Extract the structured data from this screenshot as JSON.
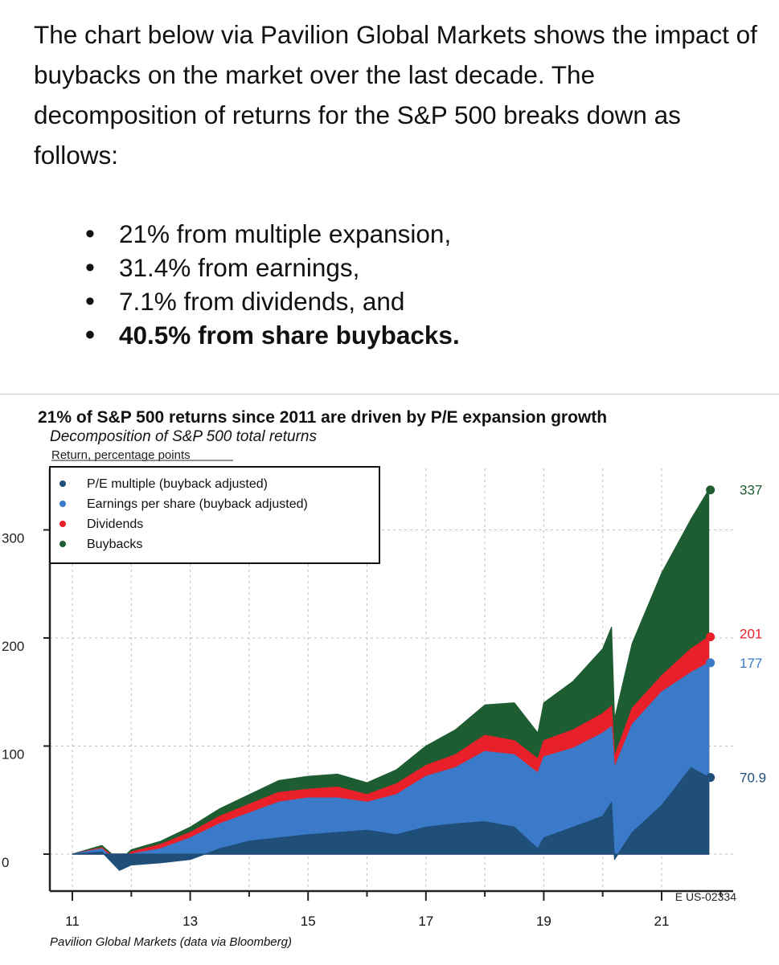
{
  "text": {
    "intro": "The chart below via Pavilion Global Markets shows the impact of buybacks on the market over the last decade. The decomposition of returns for the S&P 500 breaks down as follows:",
    "bullets": [
      {
        "text": "21% from multiple expansion,",
        "bold": false
      },
      {
        "text": "31.4% from earnings,",
        "bold": false
      },
      {
        "text": "7.1% from dividends, and",
        "bold": false
      },
      {
        "text": "40.5% from share buybacks.",
        "bold": true
      }
    ]
  },
  "colors": {
    "pe": "#1f4e79",
    "eps": "#3a7ac8",
    "dividends": "#e8202a",
    "buybacks": "#1e5c32",
    "grid": "#bfbfbf",
    "axis": "#222222"
  },
  "chart_data": {
    "type": "area",
    "title": "21% of S&P 500 returns since 2011 are driven by P/E expansion growth",
    "subtitle": "Decomposition of S&P 500 total returns",
    "ylabel": "Return, percentage points",
    "source": "Pavilion Global Markets (data via Bloomberg)",
    "code": "E US-02334",
    "legend_position": "top-left",
    "grid": true,
    "stacked": true,
    "x_ticks": [
      "11",
      "13",
      "15",
      "17",
      "19",
      "21"
    ],
    "y_ticks": [
      0,
      100,
      200,
      300
    ],
    "xlim": [
      2011,
      2022
    ],
    "ylim": [
      -35,
      345
    ],
    "x": [
      2011.0,
      2011.5,
      2011.8,
      2012.0,
      2012.5,
      2013.0,
      2013.5,
      2014.0,
      2014.5,
      2015.0,
      2015.5,
      2016.0,
      2016.5,
      2017.0,
      2017.5,
      2018.0,
      2018.5,
      2018.9,
      2019.0,
      2019.5,
      2020.0,
      2020.15,
      2020.2,
      2020.5,
      2021.0,
      2021.5,
      2021.8
    ],
    "series": [
      {
        "name": "P/E multiple (buyback adjusted)",
        "values": [
          0,
          2,
          -15,
          -10,
          -8,
          -5,
          5,
          12,
          15,
          18,
          20,
          22,
          18,
          25,
          28,
          30,
          25,
          5,
          15,
          25,
          35,
          48,
          -5,
          20,
          45,
          80,
          70.9
        ]
      },
      {
        "name": "Earnings per share (buyback adjusted)",
        "values": [
          0,
          5,
          -10,
          0,
          5,
          15,
          28,
          38,
          48,
          52,
          52,
          48,
          55,
          72,
          80,
          95,
          92,
          75,
          90,
          98,
          112,
          118,
          80,
          120,
          150,
          168,
          177
        ]
      },
      {
        "name": "Dividends",
        "values": [
          0,
          6,
          -7,
          2,
          9,
          20,
          35,
          46,
          57,
          60,
          62,
          55,
          65,
          82,
          92,
          110,
          105,
          88,
          105,
          115,
          130,
          137,
          90,
          135,
          165,
          190,
          201
        ]
      },
      {
        "name": "Buybacks",
        "values": [
          0,
          8,
          -6,
          4,
          12,
          25,
          42,
          55,
          68,
          72,
          74,
          66,
          78,
          100,
          115,
          138,
          140,
          112,
          140,
          160,
          190,
          210,
          125,
          195,
          260,
          310,
          337
        ]
      }
    ],
    "end_labels": [
      "70.9",
      "177",
      "201",
      "337"
    ]
  }
}
